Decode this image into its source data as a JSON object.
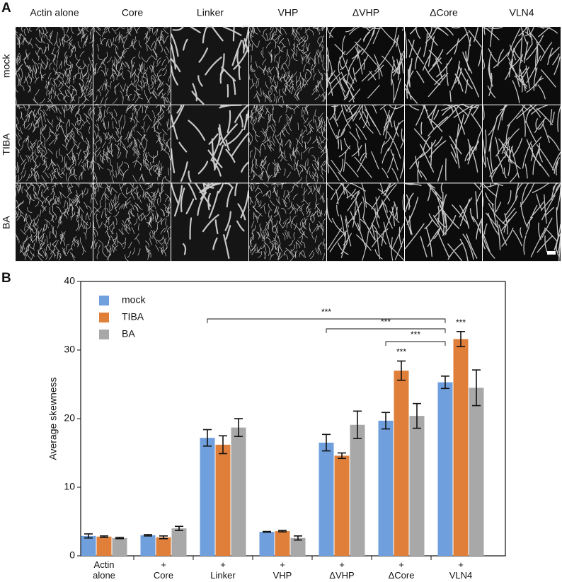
{
  "panel_a": {
    "label": "A",
    "columns": [
      "Actin alone",
      "Core",
      "Linker",
      "VHP",
      "ΔVHP",
      "ΔCore",
      "VLN4"
    ],
    "rows": [
      "mock",
      "TIBA",
      "BA"
    ]
  },
  "chart_data": {
    "type": "bar",
    "panel_label": "B",
    "y_label": "Average skewness",
    "categories": [
      "Actin alone",
      "+ Core",
      "+ Linker",
      "+ VHP",
      "+ ΔVHP",
      "+ ΔCore",
      "+ VLN4"
    ],
    "series": [
      {
        "name": "mock",
        "color": "#6f9fdc",
        "values": [
          2.9,
          3.0,
          17.2,
          3.5,
          16.5,
          19.7,
          25.3
        ],
        "errors": [
          0.3,
          0.1,
          1.2,
          0.05,
          1.2,
          1.2,
          0.9
        ]
      },
      {
        "name": "TIBA",
        "color": "#e07f3a",
        "values": [
          2.8,
          2.7,
          16.2,
          3.6,
          14.6,
          27.0,
          31.6
        ],
        "errors": [
          0.1,
          0.2,
          1.3,
          0.1,
          0.4,
          1.4,
          1.1
        ]
      },
      {
        "name": "BA",
        "color": "#a8a8a8",
        "values": [
          2.6,
          4.0,
          18.7,
          2.6,
          19.1,
          20.4,
          24.5
        ],
        "errors": [
          0.1,
          0.3,
          1.3,
          0.3,
          2.0,
          1.8,
          2.6
        ]
      }
    ],
    "ylim": [
      0,
      40
    ],
    "yticks": [
      0,
      10,
      20,
      30,
      40
    ],
    "legend": "upper left",
    "annotations": [
      {
        "text": "***"
      },
      {
        "text": "***"
      },
      {
        "text": "***"
      },
      {
        "text": "***"
      },
      {
        "text": "***"
      }
    ]
  }
}
